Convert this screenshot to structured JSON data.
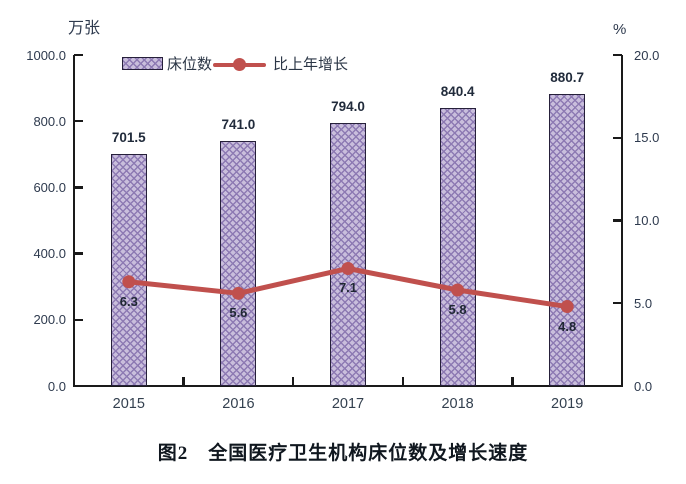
{
  "chart_data": {
    "type": "bar+line combo",
    "title": "图2　全国医疗卫生机构床位数及增长速度",
    "categories": [
      "2015",
      "2016",
      "2017",
      "2018",
      "2019"
    ],
    "series": [
      {
        "name": "床位数",
        "type": "bar",
        "axis": "left",
        "values": [
          701.5,
          741.0,
          794.0,
          840.4,
          880.7
        ],
        "labels": [
          "701.5",
          "741.0",
          "794.0",
          "840.4",
          "880.7"
        ]
      },
      {
        "name": "比上年增长",
        "type": "line",
        "axis": "right",
        "values": [
          6.3,
          5.6,
          7.1,
          5.8,
          4.8
        ],
        "labels": [
          "6.3",
          "5.6",
          "7.1",
          "5.8",
          "4.8"
        ]
      }
    ],
    "left_axis": {
      "unit": "万张",
      "min": 0,
      "max": 1000,
      "tick_values": [
        1000,
        800,
        600,
        400,
        200,
        0
      ],
      "tick_labels": [
        "1000.0",
        "800.0",
        "600.0",
        "400.0",
        "200.0",
        "0.0"
      ]
    },
    "right_axis": {
      "unit": "%",
      "min": 0,
      "max": 20,
      "tick_values": [
        20,
        15,
        10,
        5,
        0
      ],
      "tick_labels": [
        "20.0",
        "15.0",
        "10.0",
        "5.0",
        "0.0"
      ]
    },
    "legend": {
      "bar_label": "床位数",
      "line_label": "比上年增长"
    },
    "grid": false,
    "colors": {
      "bar_fill": "#c9bedc",
      "bar_hatch": "#8d7ab3",
      "bar_border": "#26203a",
      "line_color": "#c0504d",
      "text_color": "#2e3a4e",
      "axis_color": "#1a1a1a"
    }
  }
}
